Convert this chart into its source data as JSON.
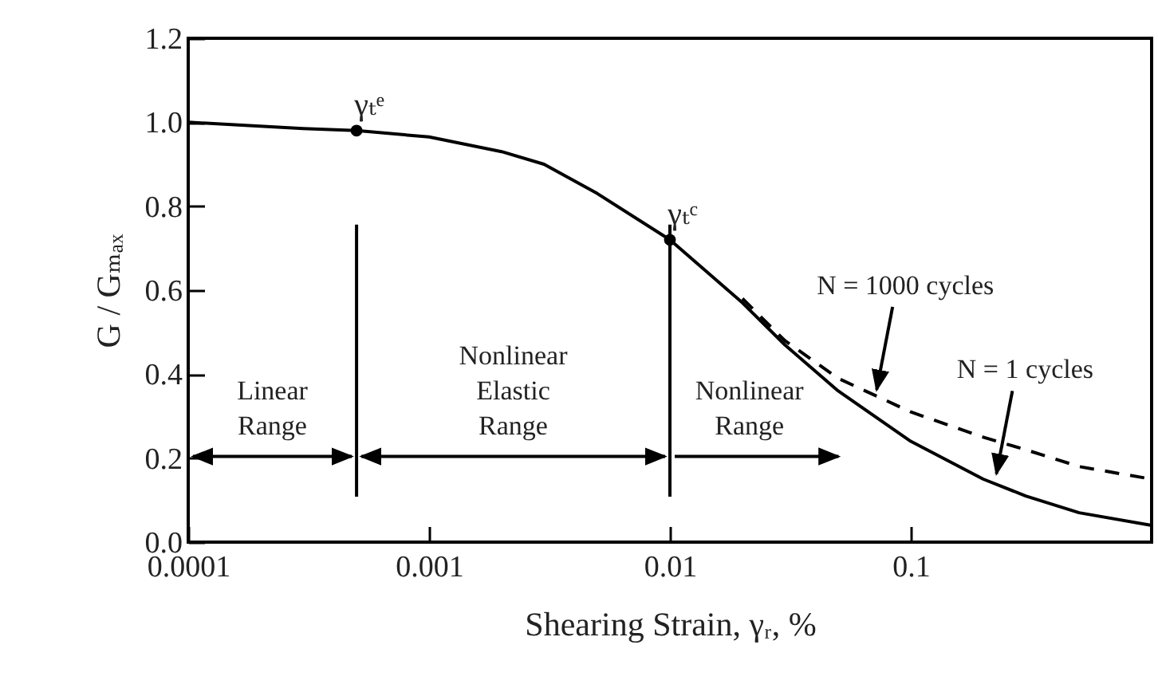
{
  "chart_data": {
    "type": "line",
    "xlabel": "Shearing Strain, γᵣ, %",
    "ylabel": "G / Gₘₐₓ",
    "log": "x",
    "xlim": [
      0.0001,
      1
    ],
    "xticks": [
      0.0001,
      0.001,
      0.01,
      0.1
    ],
    "ylim": [
      0,
      1.2
    ],
    "yticks": [
      {
        "value": 0,
        "label": "0.0"
      },
      0.2,
      0.4,
      0.6,
      0.8,
      {
        "value": 1,
        "label": "1.0"
      },
      1.2
    ],
    "grid": false,
    "series": [
      {
        "color": "#000000",
        "line_style": "solid",
        "x": [
          0.0001,
          0.0003,
          0.0005,
          0.001,
          0.002,
          0.003,
          0.005,
          0.01,
          0.02,
          0.03,
          0.05,
          0.1,
          0.2,
          0.3,
          0.5,
          1
        ],
        "values": [
          1.0,
          0.985,
          0.98,
          0.965,
          0.93,
          0.9,
          0.83,
          0.72,
          0.57,
          0.47,
          0.36,
          0.24,
          0.15,
          0.11,
          0.07,
          0.04
        ]
      },
      {
        "color": "#000000",
        "line_style": "dashed",
        "x": [
          0.02,
          0.03,
          0.05,
          0.1,
          0.2,
          0.3,
          0.5,
          1
        ],
        "values": [
          0.58,
          0.48,
          0.39,
          0.31,
          0.25,
          0.22,
          0.18,
          0.15
        ]
      },
      {
        "type": "scatter",
        "color": "#000000",
        "marker": "circle",
        "x": [
          0.0005,
          0.01
        ],
        "values": [
          0.98,
          0.72
        ]
      }
    ],
    "ref_lines": [
      {
        "axis": "x",
        "value": 0.0005,
        "color": "#000000"
      },
      {
        "axis": "x",
        "value": 0.01,
        "color": "#000000"
      }
    ],
    "annotations": [
      {
        "text": "γₜᵉ",
        "x": 0.0005,
        "y": 0.98
      },
      {
        "text": "γₜᶜ",
        "x": 0.01,
        "y": 0.72
      },
      "Linear\nRange",
      "Nonlinear\nElastic\nRange",
      "Nonlinear\nRange",
      {
        "text": "N = 1000 cycles",
        "x": 0.07,
        "y": 0.34
      },
      {
        "text": "N = 1 cycles",
        "x": 0.22,
        "y": 0.14
      }
    ]
  }
}
